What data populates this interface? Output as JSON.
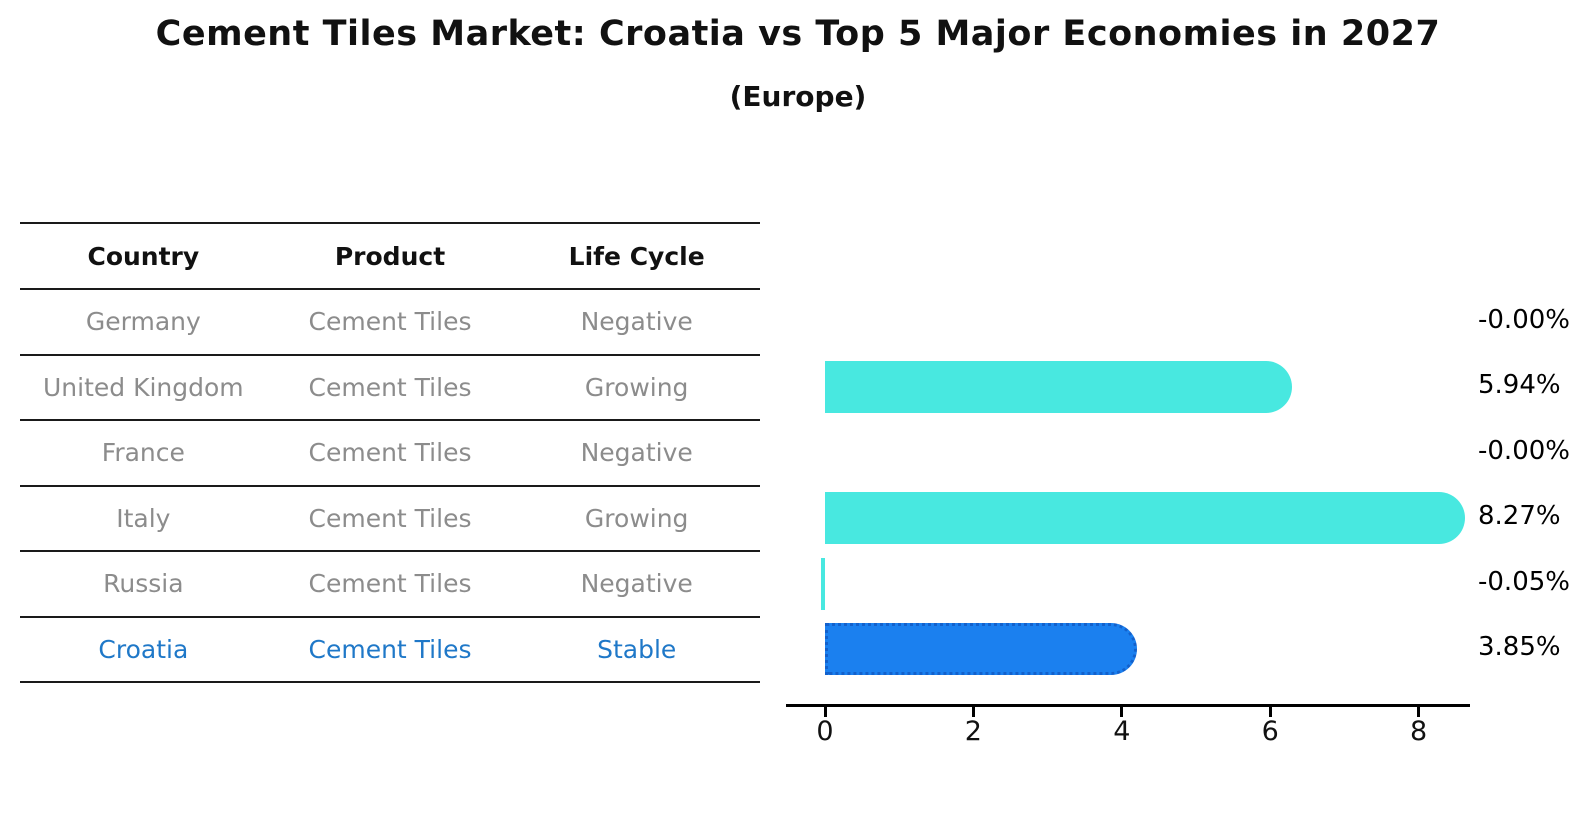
{
  "title": "Cement Tiles Market: Croatia vs Top 5 Major Economies in 2027",
  "subtitle": "(Europe)",
  "table": {
    "headers": [
      "Country",
      "Product",
      "Life Cycle"
    ],
    "rows": [
      {
        "country": "Germany",
        "product": "Cement Tiles",
        "life_cycle": "Negative",
        "highlight": false
      },
      {
        "country": "United Kingdom",
        "product": "Cement Tiles",
        "life_cycle": "Growing",
        "highlight": false
      },
      {
        "country": "France",
        "product": "Cement Tiles",
        "life_cycle": "Negative",
        "highlight": false
      },
      {
        "country": "Italy",
        "product": "Cement Tiles",
        "life_cycle": "Growing",
        "highlight": false
      },
      {
        "country": "Russia",
        "product": "Cement Tiles",
        "life_cycle": "Negative",
        "highlight": false
      },
      {
        "country": "Croatia",
        "product": "Cement Tiles",
        "life_cycle": "Stable",
        "highlight": true
      }
    ]
  },
  "chart_data": {
    "type": "bar",
    "orientation": "horizontal",
    "categories": [
      "Germany",
      "United Kingdom",
      "France",
      "Italy",
      "Russia",
      "Croatia"
    ],
    "values": [
      -0.0,
      5.94,
      -0.0,
      8.27,
      -0.05,
      3.85
    ],
    "labels": [
      "-0.00%",
      "5.94%",
      "-0.00%",
      "8.27%",
      "-0.05%",
      "3.85%"
    ],
    "xticks": [
      "0",
      "2",
      "4",
      "6",
      "8"
    ],
    "xlim": [
      -0.5,
      8.7
    ],
    "highlight_index": 5,
    "legend": "none",
    "grid": false
  },
  "colors": {
    "bar": "#48E8E0",
    "highlight_bar": "#1B80EF",
    "highlight_border": "#1361CC",
    "highlight_text": "#1F78C8",
    "table_text": "#8C8C8C",
    "axis": "#000000"
  }
}
